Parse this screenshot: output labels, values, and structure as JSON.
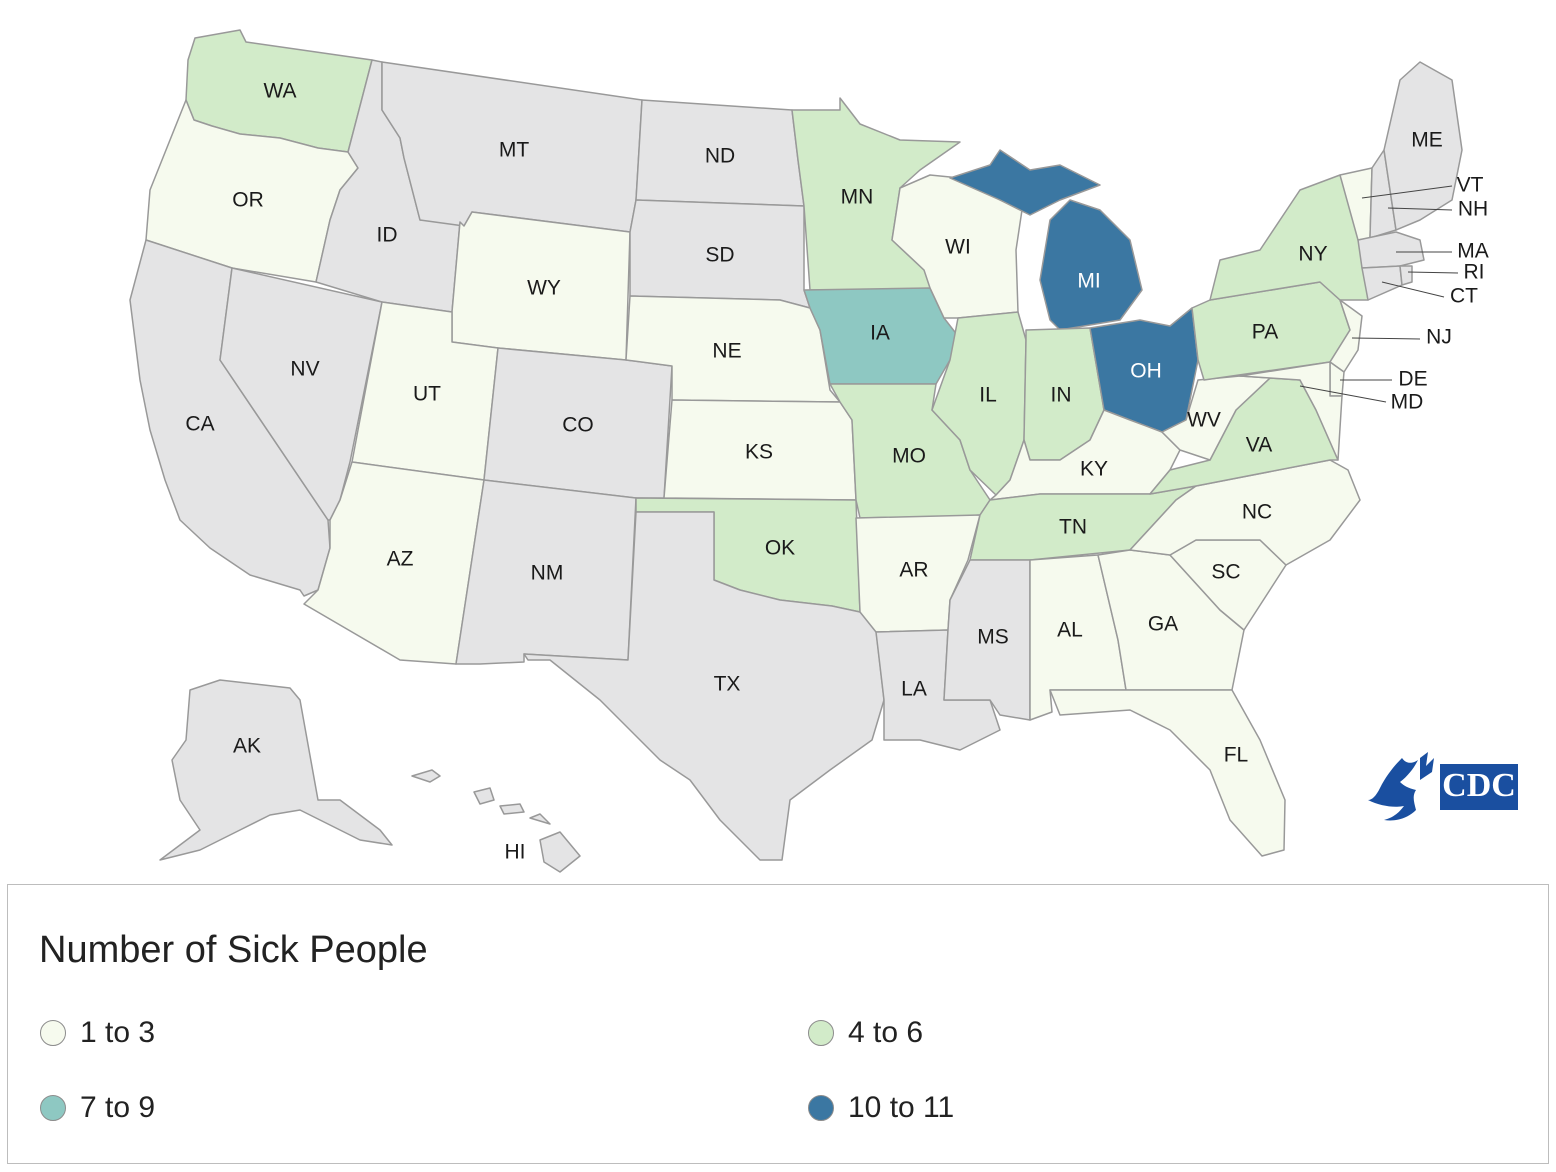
{
  "map": {
    "legend_title": "Number of Sick People",
    "categories": [
      {
        "id": "c1",
        "label": "1 to 3",
        "color": "#f6faee"
      },
      {
        "id": "c2",
        "label": "4 to 6",
        "color": "#d2ebc9"
      },
      {
        "id": "c3",
        "label": "7 to 9",
        "color": "#8ec8c2"
      },
      {
        "id": "c4",
        "label": "10 to 11",
        "color": "#3b77a2"
      }
    ],
    "no_data_color": "#e4e4e5",
    "states": {
      "WA": "c2",
      "OR": "c1",
      "CA": "none",
      "NV": "none",
      "ID": "none",
      "MT": "none",
      "WY": "c1",
      "UT": "c1",
      "AZ": "c1",
      "CO": "none",
      "NM": "none",
      "ND": "none",
      "SD": "none",
      "NE": "c1",
      "KS": "c1",
      "OK": "c2",
      "TX": "none",
      "MN": "c2",
      "IA": "c3",
      "MO": "c2",
      "AR": "c1",
      "LA": "none",
      "WI": "c1",
      "IL": "c2",
      "MI": "c4",
      "IN": "c2",
      "OH": "c4",
      "KY": "c1",
      "TN": "c2",
      "MS": "none",
      "AL": "c1",
      "GA": "c1",
      "FL": "c1",
      "SC": "c1",
      "NC": "c1",
      "VA": "c2",
      "WV": "c1",
      "PA": "c2",
      "NY": "c2",
      "VT": "c1",
      "NH": "none",
      "ME": "none",
      "MA": "none",
      "RI": "none",
      "CT": "none",
      "NJ": "c1",
      "DE": "c1",
      "MD": "c1",
      "AK": "none",
      "HI": "none"
    },
    "logo": {
      "text": "CDC",
      "icon": "hhs-eagle-icon"
    }
  }
}
